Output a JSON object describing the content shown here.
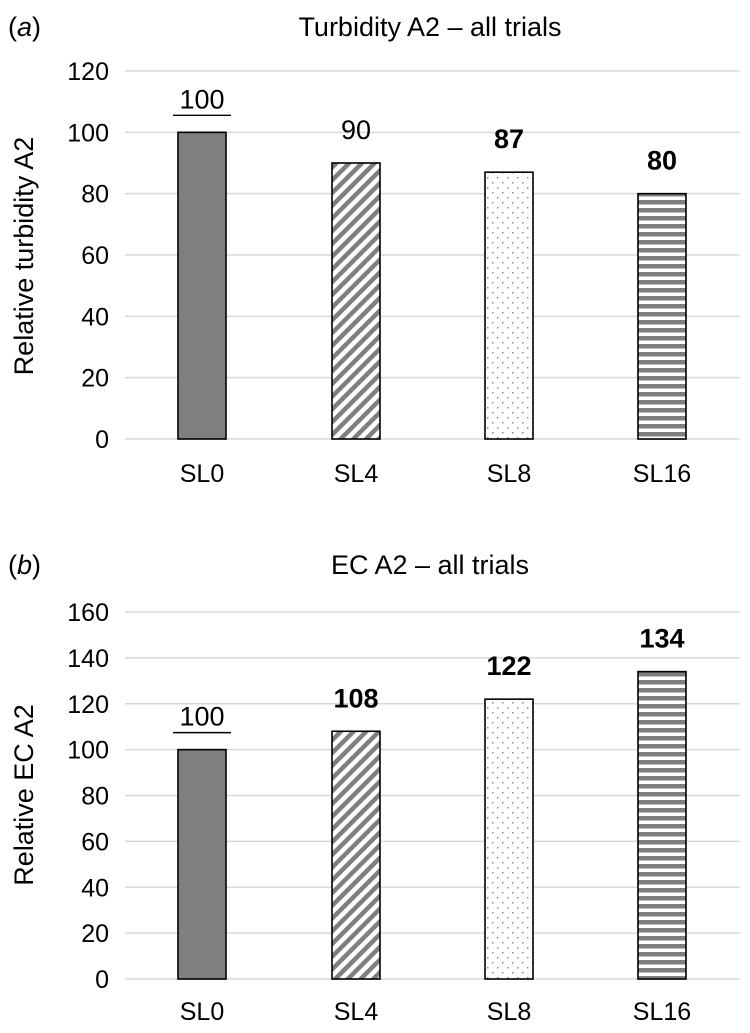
{
  "chart_data": [
    {
      "panel": "(a)",
      "panel_letter": "a",
      "type": "bar",
      "title": "Turbidity A2 – all trials",
      "xlabel": "",
      "ylabel": "Relative turbidity A2",
      "categories": [
        "SL0",
        "SL4",
        "SL8",
        "SL16"
      ],
      "values": [
        100,
        90,
        87,
        80
      ],
      "data_labels": [
        "100",
        "90",
        "87",
        "80"
      ],
      "label_style": [
        "underline",
        "normal",
        "bold",
        "bold"
      ],
      "bar_patterns": [
        "solid-gray",
        "diagonal-stripes",
        "dotted",
        "horizontal-stripes"
      ],
      "ylim": [
        0,
        120
      ],
      "yticks": [
        0,
        20,
        40,
        60,
        80,
        100,
        120
      ],
      "grid": true,
      "colors": {
        "solid": "#7f7f7f",
        "pattern": "#7f7f7f",
        "dots": "#8c8c8c",
        "grid": "#d9d9d9"
      }
    },
    {
      "panel": "(b)",
      "panel_letter": "b",
      "type": "bar",
      "title": "EC A2 – all trials",
      "xlabel": "",
      "ylabel": "Relative EC A2",
      "categories": [
        "SL0",
        "SL4",
        "SL8",
        "SL16"
      ],
      "values": [
        100,
        108,
        122,
        134
      ],
      "data_labels": [
        "100",
        "108",
        "122",
        "134"
      ],
      "label_style": [
        "underline",
        "bold",
        "bold",
        "bold"
      ],
      "bar_patterns": [
        "solid-gray",
        "diagonal-stripes",
        "dotted",
        "horizontal-stripes"
      ],
      "ylim": [
        0,
        160
      ],
      "yticks": [
        0,
        20,
        40,
        60,
        80,
        100,
        120,
        140,
        160
      ],
      "grid": true,
      "colors": {
        "solid": "#7f7f7f",
        "pattern": "#7f7f7f",
        "dots": "#8c8c8c",
        "grid": "#d9d9d9"
      }
    }
  ]
}
